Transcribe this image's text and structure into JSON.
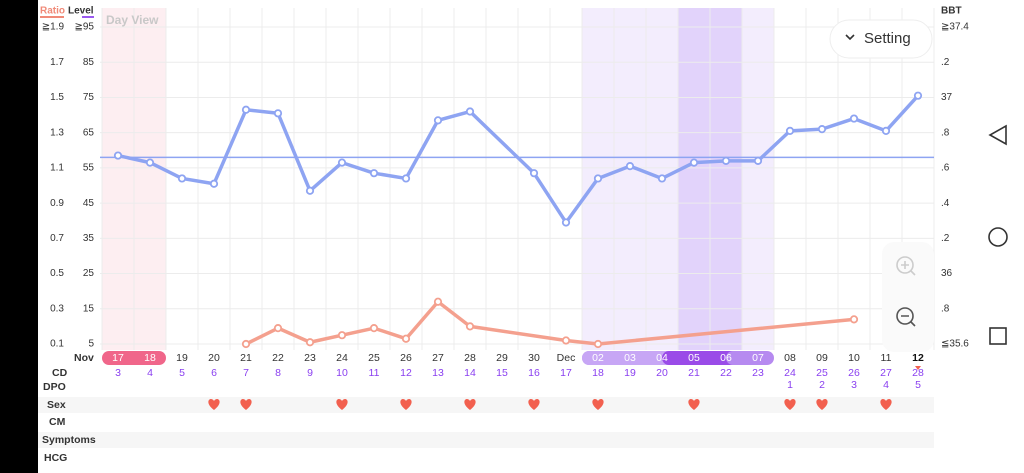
{
  "day_view": "Day View",
  "setting_button": "Setting",
  "row_labels": {
    "date": "Nov",
    "cd": "CD",
    "dpo": "DPO",
    "sex": "Sex",
    "cm": "CM",
    "symptoms": "Symptoms",
    "hcg": "HCG"
  },
  "chart_data": {
    "type": "line",
    "ratio_label": "Ratio",
    "level_label": "Level",
    "bbt_label": "BBT",
    "categories": [
      "17",
      "18",
      "19",
      "20",
      "21",
      "22",
      "23",
      "24",
      "25",
      "26",
      "27",
      "28",
      "29",
      "30",
      "Dec",
      "02",
      "03",
      "04",
      "05",
      "06",
      "07",
      "08",
      "09",
      "10",
      "11",
      "12"
    ],
    "ratio_ylim": [
      0.1,
      1.9
    ],
    "ratio_yticks": [
      {
        "value": 1.9,
        "label": "≧1.9"
      },
      1.7,
      1.5,
      1.3,
      1.1,
      0.9,
      0.7,
      0.5,
      0.3,
      0.1
    ],
    "level_ylim": [
      5,
      95
    ],
    "level_yticks": [
      {
        "value": 95,
        "label": "≧95"
      },
      85,
      75,
      65,
      55,
      45,
      35,
      25,
      15,
      5
    ],
    "y2lim": [
      35.6,
      37.4
    ],
    "y2ticks": [
      {
        "value": 37.4,
        "label": "≧37.4"
      },
      {
        "value": 37.2,
        "label": ".2"
      },
      37,
      {
        "value": 36.8,
        "label": ".8"
      },
      {
        "value": 36.6,
        "label": ".6"
      },
      {
        "value": 36.4,
        "label": ".4"
      },
      {
        "value": 36.2,
        "label": ".2"
      },
      36,
      {
        "value": 35.8,
        "label": ".8"
      },
      {
        "value": 35.6,
        "label": "≦35.6"
      }
    ],
    "grid": true,
    "coverline": 36.66,
    "series": [
      {
        "color": "#8ea4f2",
        "axis": "y2",
        "values": [
          36.67,
          36.63,
          36.54,
          36.51,
          36.93,
          36.91,
          36.47,
          36.63,
          36.57,
          36.54,
          36.87,
          36.92,
          null,
          36.57,
          36.29,
          36.54,
          36.61,
          36.54,
          36.63,
          36.64,
          36.64,
          36.81,
          36.82,
          36.88,
          36.81,
          37.01
        ]
      },
      {
        "color": "#f4a08e",
        "axis": "ratio",
        "values": [
          null,
          null,
          null,
          null,
          0.1,
          0.19,
          0.11,
          0.15,
          0.19,
          0.13,
          0.34,
          0.2,
          null,
          null,
          0.12,
          0.1,
          null,
          null,
          null,
          null,
          null,
          null,
          null,
          0.24,
          null,
          null
        ]
      }
    ],
    "cd": [
      3,
      4,
      5,
      6,
      7,
      8,
      9,
      10,
      11,
      12,
      13,
      14,
      15,
      16,
      17,
      18,
      19,
      20,
      21,
      22,
      23,
      24,
      25,
      26,
      27,
      28
    ],
    "dpo": [
      null,
      null,
      null,
      null,
      null,
      null,
      null,
      null,
      null,
      null,
      null,
      null,
      null,
      null,
      null,
      null,
      null,
      null,
      null,
      null,
      null,
      1,
      2,
      3,
      4,
      5
    ],
    "sex": [
      false,
      false,
      false,
      true,
      true,
      false,
      false,
      true,
      false,
      true,
      false,
      true,
      false,
      true,
      false,
      true,
      false,
      false,
      true,
      false,
      false,
      true,
      true,
      false,
      true,
      false
    ]
  }
}
